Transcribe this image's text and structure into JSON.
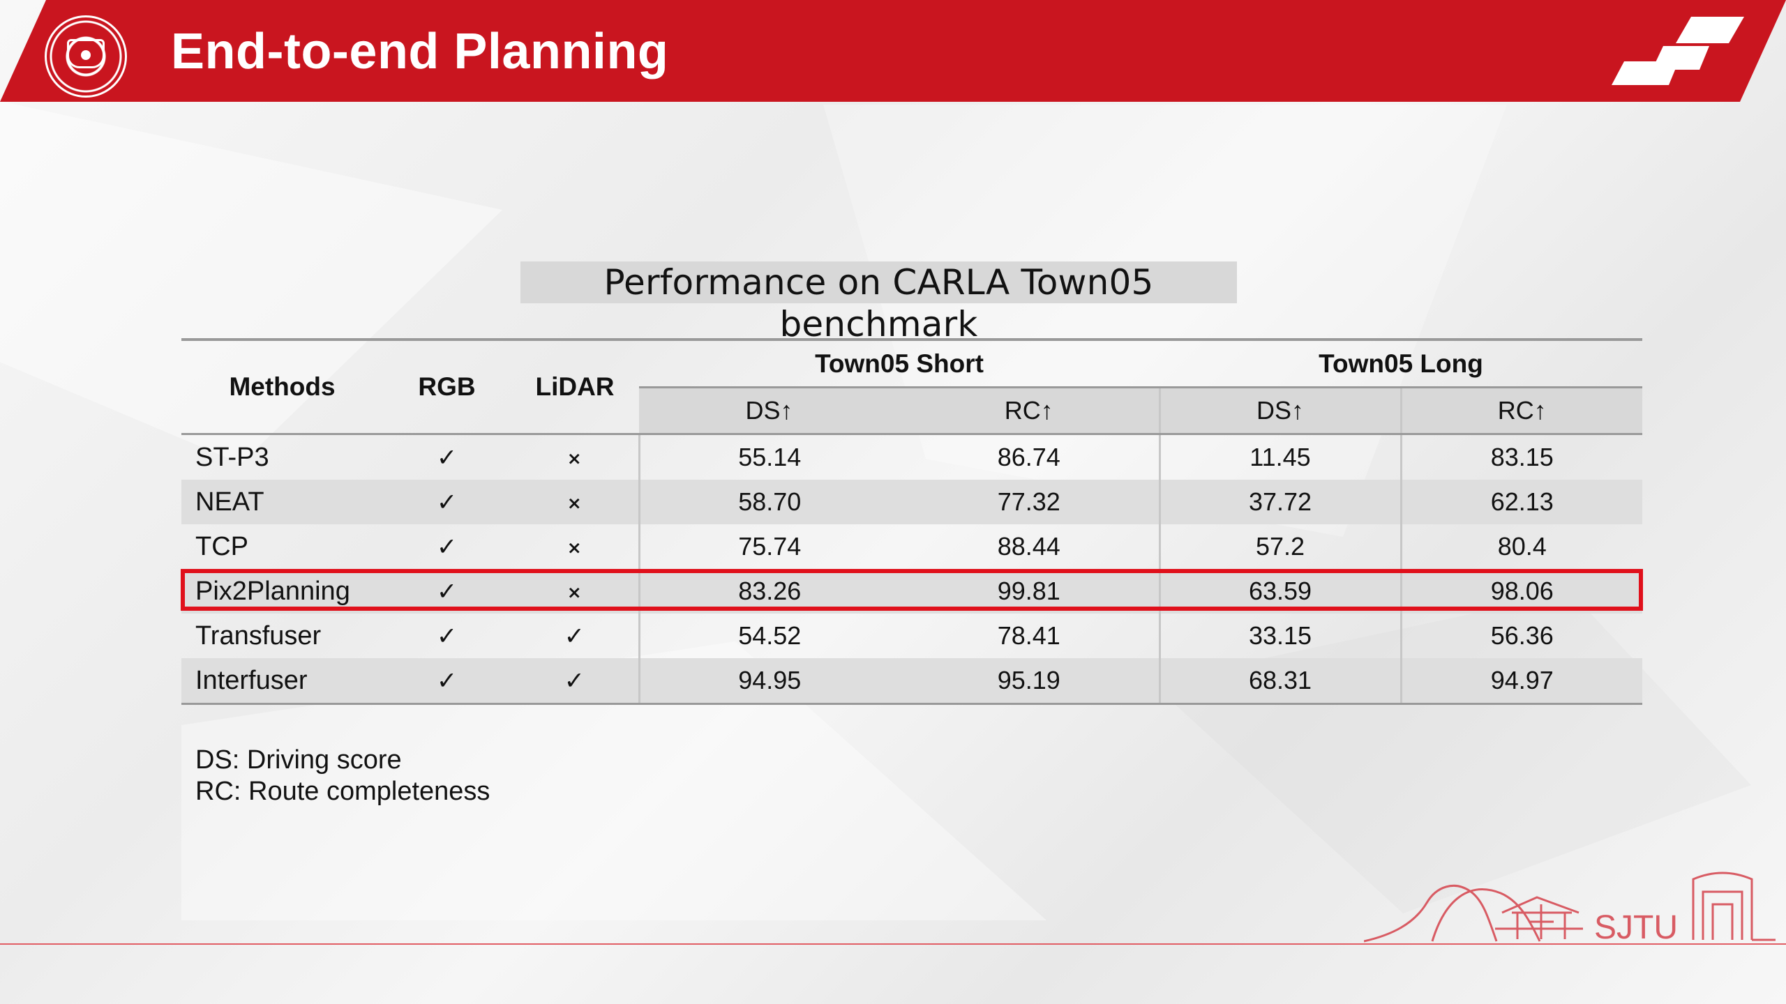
{
  "header": {
    "title": "End-to-end Planning"
  },
  "subtitle": "Performance on CARLA Town05 benchmark",
  "table": {
    "column_headers": {
      "methods": "Methods",
      "rgb": "RGB",
      "lidar": "LiDAR",
      "short_group": "Town05 Short",
      "long_group": "Town05 Long",
      "metrics": [
        "DS↑",
        "RC↑",
        "DS↑",
        "RC↑"
      ]
    },
    "rows": [
      {
        "method": "ST-P3",
        "rgb": "✓",
        "lidar": "×",
        "short_ds": "55.14",
        "short_rc": "86.74",
        "long_ds": "11.45",
        "long_rc": "83.15"
      },
      {
        "method": "NEAT",
        "rgb": "✓",
        "lidar": "×",
        "short_ds": "58.70",
        "short_rc": "77.32",
        "long_ds": "37.72",
        "long_rc": "62.13"
      },
      {
        "method": "TCP",
        "rgb": "✓",
        "lidar": "×",
        "short_ds": "75.74",
        "short_rc": "88.44",
        "long_ds": "57.2",
        "long_rc": "80.4"
      },
      {
        "method": "Pix2Planning",
        "rgb": "✓",
        "lidar": "×",
        "short_ds": "83.26",
        "short_rc": "99.81",
        "long_ds": "63.59",
        "long_rc": "98.06"
      },
      {
        "method": "Transfuser",
        "rgb": "✓",
        "lidar": "✓",
        "short_ds": "54.52",
        "short_rc": "78.41",
        "long_ds": "33.15",
        "long_rc": "56.36"
      },
      {
        "method": "Interfuser",
        "rgb": "✓",
        "lidar": "✓",
        "short_ds": "94.95",
        "short_rc": "95.19",
        "long_ds": "68.31",
        "long_rc": "94.97"
      }
    ]
  },
  "notes": [
    "DS: Driving score",
    "RC: Route completeness"
  ],
  "footer": {
    "logo_text": "SJTU"
  },
  "icons": {
    "logo": "university-seal-icon",
    "header_mark": "slanted-blocks-icon",
    "footer_mark": "campus-skyline-logo-icon"
  },
  "colors": {
    "accent": "#c9151f",
    "highlight": "#e0101b",
    "table_gray": "#d8d8d8",
    "text": "#111111"
  }
}
